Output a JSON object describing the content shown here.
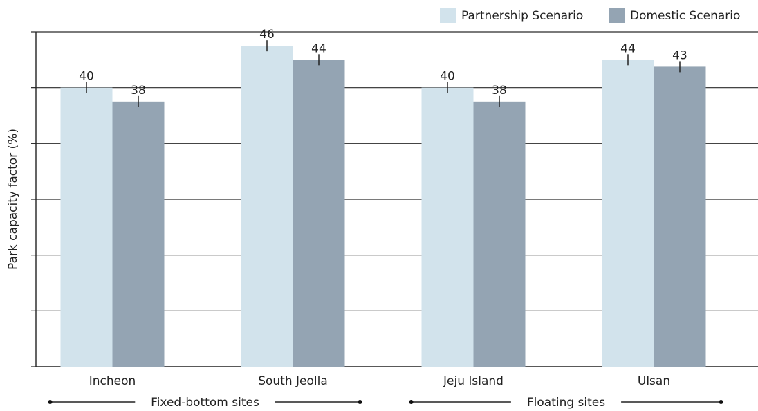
{
  "chart_data": {
    "type": "bar",
    "title": "",
    "xlabel": "",
    "ylabel": "Park capacity factor (%)",
    "ylim": [
      0,
      48
    ],
    "gridlines": true,
    "legend_position": "top-right",
    "categories": [
      "Incheon",
      "South Jeolla",
      "Jeju Island",
      "Ulsan"
    ],
    "series": [
      {
        "name": "Partnership Scenario",
        "values": [
          40,
          46,
          40,
          44
        ],
        "labels": [
          "40",
          "46",
          "40",
          "44"
        ],
        "color": "#d2e3ec"
      },
      {
        "name": "Domestic Scenario",
        "values": [
          38,
          44,
          38,
          43
        ],
        "labels": [
          "38",
          "44",
          "38",
          "43"
        ],
        "color": "#94a4b3"
      }
    ],
    "groups": [
      {
        "label": "Fixed-bottom sites",
        "categories": [
          "Incheon",
          "South Jeolla"
        ]
      },
      {
        "label": "Floating sites",
        "categories": [
          "Jeju Island",
          "Ulsan"
        ]
      }
    ]
  }
}
